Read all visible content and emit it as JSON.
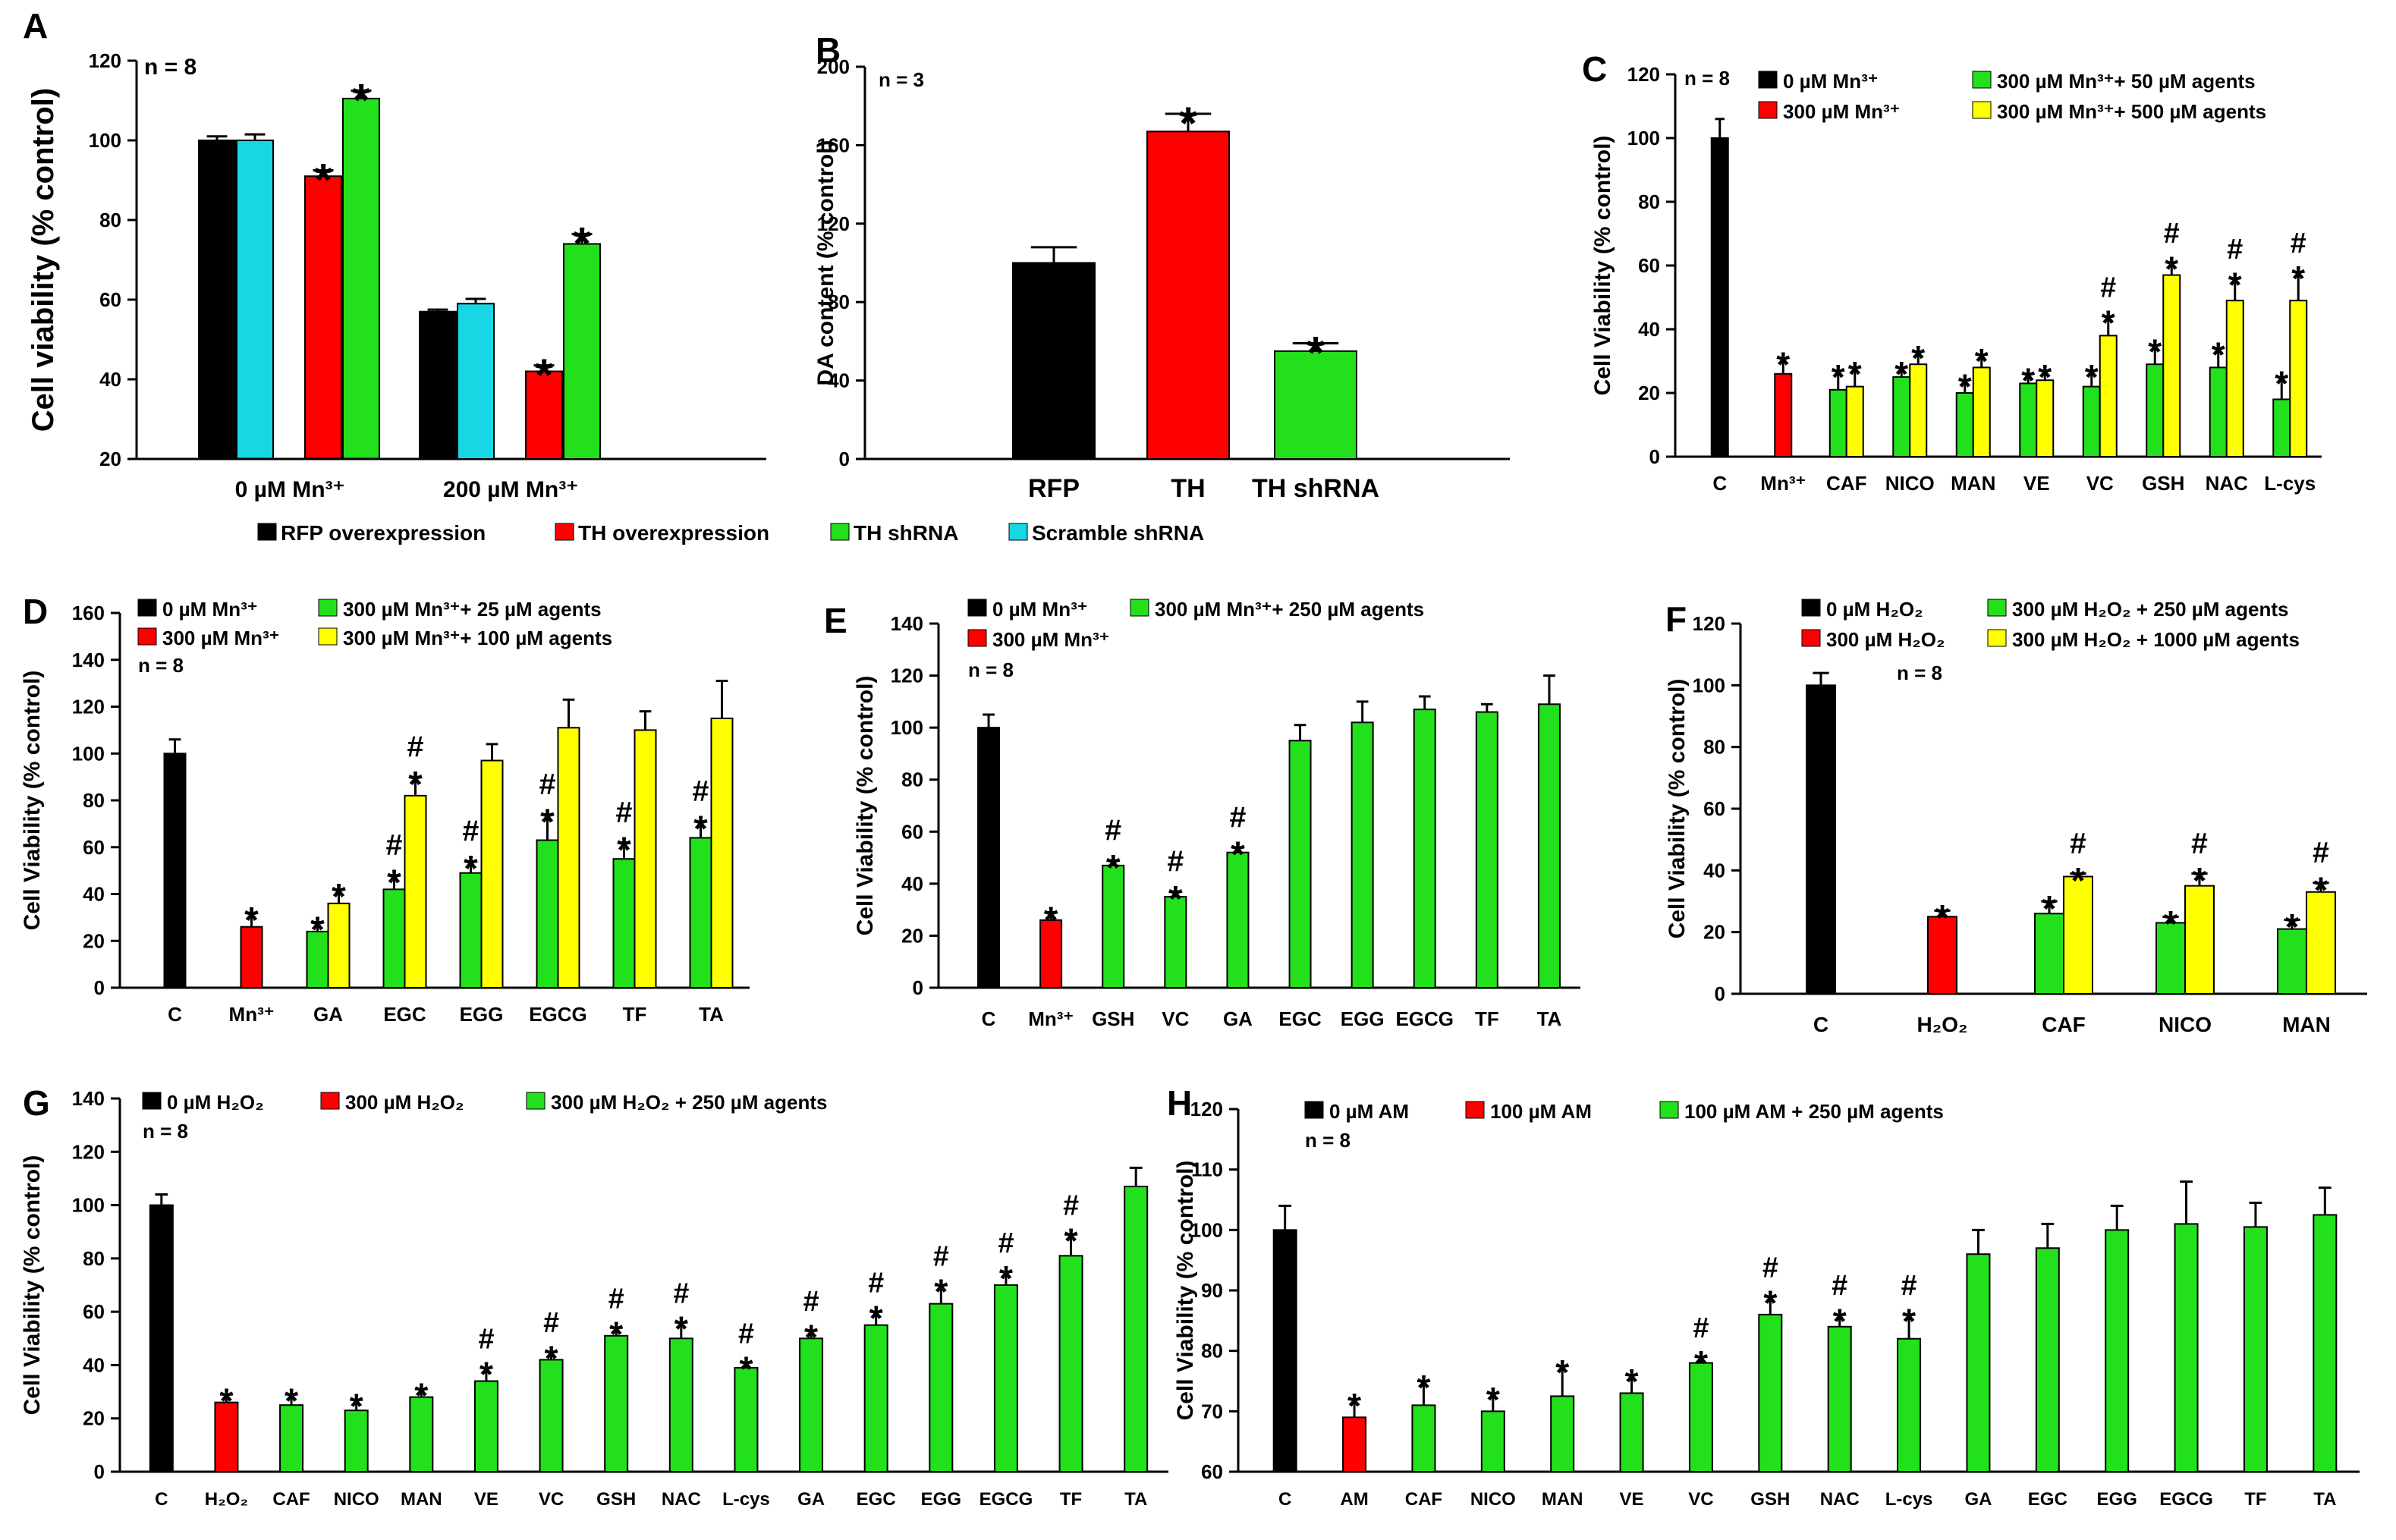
{
  "colors": {
    "black": "#000000",
    "red": "#ff0000",
    "green": "#22e01c",
    "cyan": "#18d6e3",
    "yellow": "#ffff00"
  },
  "chart_data": [
    {
      "id": "A",
      "panel_label": "A",
      "type": "bar",
      "ylabel": "Cell viability (% control)",
      "ylim": [
        20,
        120
      ],
      "yticks": [
        "20",
        "40",
        "60",
        "80",
        "100",
        "120"
      ],
      "n_label": "n = 8",
      "groups": [
        "0 µM Mn³⁺",
        "200 µM Mn³⁺"
      ],
      "series": [
        {
          "name": "RFP overexpression",
          "color": "black",
          "values": [
            100,
            57
          ],
          "errors": [
            1,
            0.5
          ],
          "marks": [
            "",
            ""
          ]
        },
        {
          "name": "Scramble shRNA",
          "color": "cyan",
          "values": [
            100,
            59
          ],
          "errors": [
            1.5,
            1.2
          ],
          "marks": [
            "",
            ""
          ]
        },
        {
          "name": "TH overexpression",
          "color": "red",
          "values": [
            91,
            42
          ],
          "errors": [
            1.5,
            1.5
          ],
          "marks": [
            "*",
            "*"
          ]
        },
        {
          "name": "TH shRNA",
          "color": "green",
          "values": [
            110.5,
            74
          ],
          "errors": [
            2,
            2.5
          ],
          "marks": [
            "*",
            "*"
          ]
        }
      ],
      "legend": [
        "RFP overexpression",
        "TH overexpression",
        "TH shRNA",
        "Scramble shRNA"
      ]
    },
    {
      "id": "B",
      "panel_label": "B",
      "type": "bar",
      "ylabel": "DA content (% control)",
      "ylim": [
        0,
        200
      ],
      "yticks": [
        "0",
        "40",
        "80",
        "120",
        "160",
        "200"
      ],
      "n_label": "n = 3",
      "categories": [
        "RFP",
        "TH",
        "TH shRNA"
      ],
      "values": [
        100,
        167,
        55
      ],
      "errors": [
        8,
        9,
        4
      ],
      "colors": [
        "black",
        "red",
        "green"
      ],
      "marks": [
        "",
        "*",
        "*"
      ]
    },
    {
      "id": "C",
      "panel_label": "C",
      "type": "bar",
      "ylabel": "Cell Viability (% control)",
      "ylim": [
        0,
        120
      ],
      "yticks": [
        "0",
        "20",
        "40",
        "60",
        "80",
        "100",
        "120"
      ],
      "n_label": "n = 8",
      "legend": [
        {
          "label": "0 µM Mn³⁺",
          "color": "black"
        },
        {
          "label": "300 µM Mn³⁺",
          "color": "red"
        },
        {
          "label": "300 µM Mn³⁺+ 50 µM agents",
          "color": "green"
        },
        {
          "label": "300 µM Mn³⁺+ 500 µM agents",
          "color": "yellow"
        }
      ],
      "categories": [
        "C",
        "Mn³⁺",
        "CAF",
        "NICO",
        "MAN",
        "VE",
        "VC",
        "GSH",
        "NAC",
        "L-cys"
      ],
      "bars": [
        [
          {
            "v": 100,
            "e": 6,
            "c": "black",
            "m": ""
          }
        ],
        [
          {
            "v": 26,
            "e": 5,
            "c": "red",
            "m": "*"
          }
        ],
        [
          {
            "v": 21,
            "e": 6,
            "c": "green",
            "m": "*"
          },
          {
            "v": 22,
            "e": 6,
            "c": "yellow",
            "m": "*"
          }
        ],
        [
          {
            "v": 25,
            "e": 3,
            "c": "green",
            "m": "*"
          },
          {
            "v": 29,
            "e": 4,
            "c": "yellow",
            "m": "*"
          }
        ],
        [
          {
            "v": 20,
            "e": 4,
            "c": "green",
            "m": "*"
          },
          {
            "v": 28,
            "e": 4,
            "c": "yellow",
            "m": "*"
          }
        ],
        [
          {
            "v": 23,
            "e": 3,
            "c": "green",
            "m": "*"
          },
          {
            "v": 24,
            "e": 3,
            "c": "yellow",
            "m": "*"
          }
        ],
        [
          {
            "v": 22,
            "e": 5,
            "c": "green",
            "m": "*"
          },
          {
            "v": 38,
            "e": 6,
            "c": "yellow",
            "m": "#*"
          }
        ],
        [
          {
            "v": 29,
            "e": 6,
            "c": "green",
            "m": "*"
          },
          {
            "v": 57,
            "e": 4,
            "c": "yellow",
            "m": "#*"
          }
        ],
        [
          {
            "v": 28,
            "e": 6,
            "c": "green",
            "m": "*"
          },
          {
            "v": 49,
            "e": 7,
            "c": "yellow",
            "m": "#*"
          }
        ],
        [
          {
            "v": 18,
            "e": 7,
            "c": "green",
            "m": "*"
          },
          {
            "v": 49,
            "e": 9,
            "c": "yellow",
            "m": "#*"
          }
        ]
      ]
    },
    {
      "id": "D",
      "panel_label": "D",
      "type": "bar",
      "ylabel": "Cell Viability (% control)",
      "ylim": [
        0,
        160
      ],
      "yticks": [
        "0",
        "20",
        "40",
        "60",
        "80",
        "100",
        "120",
        "140",
        "160"
      ],
      "n_label": "n = 8",
      "legend": [
        {
          "label": "0 µM Mn³⁺",
          "color": "black"
        },
        {
          "label": "300 µM Mn³⁺",
          "color": "red"
        },
        {
          "label": "300 µM Mn³⁺+ 25 µM agents",
          "color": "green"
        },
        {
          "label": "300 µM Mn³⁺+ 100 µM agents",
          "color": "yellow"
        }
      ],
      "categories": [
        "C",
        "Mn³⁺",
        "GA",
        "EGC",
        "EGG",
        "EGCG",
        "TF",
        "TA"
      ],
      "bars": [
        [
          {
            "v": 100,
            "e": 6,
            "c": "black",
            "m": ""
          }
        ],
        [
          {
            "v": 26,
            "e": 6,
            "c": "red",
            "m": "*"
          }
        ],
        [
          {
            "v": 24,
            "e": 4,
            "c": "green",
            "m": "*"
          },
          {
            "v": 36,
            "e": 6,
            "c": "yellow",
            "m": "*"
          }
        ],
        [
          {
            "v": 42,
            "e": 6,
            "c": "green",
            "m": "#*"
          },
          {
            "v": 82,
            "e": 8,
            "c": "yellow",
            "m": "#*"
          }
        ],
        [
          {
            "v": 49,
            "e": 5,
            "c": "green",
            "m": "#*"
          },
          {
            "v": 97,
            "e": 7,
            "c": "yellow",
            "m": ""
          }
        ],
        [
          {
            "v": 63,
            "e": 11,
            "c": "green",
            "m": "#*"
          },
          {
            "v": 111,
            "e": 12,
            "c": "yellow",
            "m": ""
          }
        ],
        [
          {
            "v": 55,
            "e": 7,
            "c": "green",
            "m": "#*"
          },
          {
            "v": 110,
            "e": 8,
            "c": "yellow",
            "m": ""
          }
        ],
        [
          {
            "v": 64,
            "e": 7,
            "c": "green",
            "m": "#*"
          },
          {
            "v": 115,
            "e": 16,
            "c": "yellow",
            "m": ""
          }
        ]
      ]
    },
    {
      "id": "E",
      "panel_label": "E",
      "type": "bar",
      "ylabel": "Cell Viability (% control)",
      "ylim": [
        0,
        140
      ],
      "yticks": [
        "0",
        "20",
        "40",
        "60",
        "80",
        "100",
        "120",
        "140"
      ],
      "n_label": "n = 8",
      "legend": [
        {
          "label": "0 µM Mn³⁺",
          "color": "black"
        },
        {
          "label": "300 µM Mn³⁺",
          "color": "red"
        },
        {
          "label": "300 µM Mn³⁺+ 250 µM agents",
          "color": "green"
        }
      ],
      "categories": [
        "C",
        "Mn³⁺",
        "GSH",
        "VC",
        "GA",
        "EGC",
        "EGG",
        "EGCG",
        "TF",
        "TA"
      ],
      "bars": [
        [
          {
            "v": 100,
            "e": 5,
            "c": "black",
            "m": ""
          }
        ],
        [
          {
            "v": 26,
            "e": 3,
            "c": "red",
            "m": "*"
          }
        ],
        [
          {
            "v": 47,
            "e": 2,
            "c": "green",
            "m": "#*"
          }
        ],
        [
          {
            "v": 35,
            "e": 2,
            "c": "green",
            "m": "#*"
          }
        ],
        [
          {
            "v": 52,
            "e": 2,
            "c": "green",
            "m": "#*"
          }
        ],
        [
          {
            "v": 95,
            "e": 6,
            "c": "green",
            "m": ""
          }
        ],
        [
          {
            "v": 102,
            "e": 8,
            "c": "green",
            "m": ""
          }
        ],
        [
          {
            "v": 107,
            "e": 5,
            "c": "green",
            "m": ""
          }
        ],
        [
          {
            "v": 106,
            "e": 3,
            "c": "green",
            "m": ""
          }
        ],
        [
          {
            "v": 109,
            "e": 11,
            "c": "green",
            "m": ""
          }
        ]
      ]
    },
    {
      "id": "F",
      "panel_label": "F",
      "type": "bar",
      "ylabel": "Cell Viability (% control)",
      "ylim": [
        0,
        120
      ],
      "yticks": [
        "0",
        "20",
        "40",
        "60",
        "80",
        "100",
        "120"
      ],
      "n_label": "n = 8",
      "legend": [
        {
          "label": "0 µM H₂O₂",
          "color": "black"
        },
        {
          "label": "300 µM H₂O₂",
          "color": "red"
        },
        {
          "label": "300 µM H₂O₂ + 250 µM agents",
          "color": "green"
        },
        {
          "label": "300 µM H₂O₂ + 1000 µM agents",
          "color": "yellow"
        }
      ],
      "categories": [
        "C",
        "H₂O₂",
        "CAF",
        "NICO",
        "MAN"
      ],
      "bars": [
        [
          {
            "v": 100,
            "e": 4,
            "c": "black",
            "m": ""
          }
        ],
        [
          {
            "v": 25,
            "e": 2,
            "c": "red",
            "m": "*"
          }
        ],
        [
          {
            "v": 26,
            "e": 4,
            "c": "green",
            "m": "*"
          },
          {
            "v": 38,
            "e": 1,
            "c": "yellow",
            "m": "#*"
          }
        ],
        [
          {
            "v": 23,
            "e": 2,
            "c": "green",
            "m": "*"
          },
          {
            "v": 35,
            "e": 4,
            "c": "yellow",
            "m": "#*"
          }
        ],
        [
          {
            "v": 21,
            "e": 3,
            "c": "green",
            "m": "*"
          },
          {
            "v": 33,
            "e": 3,
            "c": "yellow",
            "m": "#*"
          }
        ]
      ]
    },
    {
      "id": "G",
      "panel_label": "G",
      "type": "bar",
      "ylabel": "Cell Viability (% control)",
      "ylim": [
        0,
        140
      ],
      "yticks": [
        "0",
        "20",
        "40",
        "60",
        "80",
        "100",
        "120",
        "140"
      ],
      "n_label": "n = 8",
      "legend": [
        {
          "label": "0 µM H₂O₂",
          "color": "black"
        },
        {
          "label": "300 µM H₂O₂",
          "color": "red"
        },
        {
          "label": "300 µM H₂O₂ + 250 µM agents",
          "color": "green"
        }
      ],
      "categories": [
        "C",
        "H₂O₂",
        "CAF",
        "NICO",
        "MAN",
        "VE",
        "VC",
        "GSH",
        "NAC",
        "L-cys",
        "GA",
        "EGC",
        "EGG",
        "EGCG",
        "TF",
        "TA"
      ],
      "bars": [
        [
          {
            "v": 100,
            "e": 4,
            "c": "black",
            "m": ""
          }
        ],
        [
          {
            "v": 26,
            "e": 3,
            "c": "red",
            "m": "*"
          }
        ],
        [
          {
            "v": 25,
            "e": 4,
            "c": "green",
            "m": "*"
          }
        ],
        [
          {
            "v": 23,
            "e": 4,
            "c": "green",
            "m": "*"
          }
        ],
        [
          {
            "v": 28,
            "e": 3,
            "c": "green",
            "m": "*"
          }
        ],
        [
          {
            "v": 34,
            "e": 5,
            "c": "green",
            "m": "#*"
          }
        ],
        [
          {
            "v": 42,
            "e": 3,
            "c": "green",
            "m": "#*"
          }
        ],
        [
          {
            "v": 51,
            "e": 3,
            "c": "green",
            "m": "#*"
          }
        ],
        [
          {
            "v": 50,
            "e": 6,
            "c": "green",
            "m": "#*"
          }
        ],
        [
          {
            "v": 39,
            "e": 2,
            "c": "green",
            "m": "#*"
          }
        ],
        [
          {
            "v": 50,
            "e": 3,
            "c": "green",
            "m": "#*"
          }
        ],
        [
          {
            "v": 55,
            "e": 5,
            "c": "green",
            "m": "#*"
          }
        ],
        [
          {
            "v": 63,
            "e": 7,
            "c": "green",
            "m": "#*"
          }
        ],
        [
          {
            "v": 70,
            "e": 5,
            "c": "green",
            "m": "#*"
          }
        ],
        [
          {
            "v": 81,
            "e": 8,
            "c": "green",
            "m": "#*"
          }
        ],
        [
          {
            "v": 107,
            "e": 7,
            "c": "green",
            "m": ""
          }
        ]
      ]
    },
    {
      "id": "H",
      "panel_label": "H",
      "type": "bar",
      "ylabel": "Cell Viability (% control)",
      "ylim": [
        60,
        120
      ],
      "yticks": [
        "60",
        "70",
        "80",
        "90",
        "100",
        "110",
        "120"
      ],
      "n_label": "n = 8",
      "legend": [
        {
          "label": "0 µM AM",
          "color": "black"
        },
        {
          "label": "100 µM AM",
          "color": "red"
        },
        {
          "label": "100 µM AM + 250 µM agents",
          "color": "green"
        }
      ],
      "categories": [
        "C",
        "AM",
        "CAF",
        "NICO",
        "MAN",
        "VE",
        "VC",
        "GSH",
        "NAC",
        "L-cys",
        "GA",
        "EGC",
        "EGG",
        "EGCG",
        "TF",
        "TA"
      ],
      "bars": [
        [
          {
            "v": 100,
            "e": 4,
            "c": "black",
            "m": ""
          }
        ],
        [
          {
            "v": 69,
            "e": 3,
            "c": "red",
            "m": "*"
          }
        ],
        [
          {
            "v": 71,
            "e": 4,
            "c": "green",
            "m": "*"
          }
        ],
        [
          {
            "v": 70,
            "e": 3,
            "c": "green",
            "m": "*"
          }
        ],
        [
          {
            "v": 72.5,
            "e": 5,
            "c": "green",
            "m": "*"
          }
        ],
        [
          {
            "v": 73,
            "e": 3,
            "c": "green",
            "m": "*"
          }
        ],
        [
          {
            "v": 78,
            "e": 1,
            "c": "green",
            "m": "#*"
          }
        ],
        [
          {
            "v": 86,
            "e": 3,
            "c": "green",
            "m": "#*"
          }
        ],
        [
          {
            "v": 84,
            "e": 2,
            "c": "green",
            "m": "#*"
          }
        ],
        [
          {
            "v": 82,
            "e": 4,
            "c": "green",
            "m": "#*"
          }
        ],
        [
          {
            "v": 96,
            "e": 4,
            "c": "green",
            "m": ""
          }
        ],
        [
          {
            "v": 97,
            "e": 4,
            "c": "green",
            "m": ""
          }
        ],
        [
          {
            "v": 100,
            "e": 4,
            "c": "green",
            "m": ""
          }
        ],
        [
          {
            "v": 101,
            "e": 7,
            "c": "green",
            "m": ""
          }
        ],
        [
          {
            "v": 100.5,
            "e": 4,
            "c": "green",
            "m": ""
          }
        ],
        [
          {
            "v": 102.5,
            "e": 4.5,
            "c": "green",
            "m": ""
          }
        ]
      ]
    }
  ]
}
